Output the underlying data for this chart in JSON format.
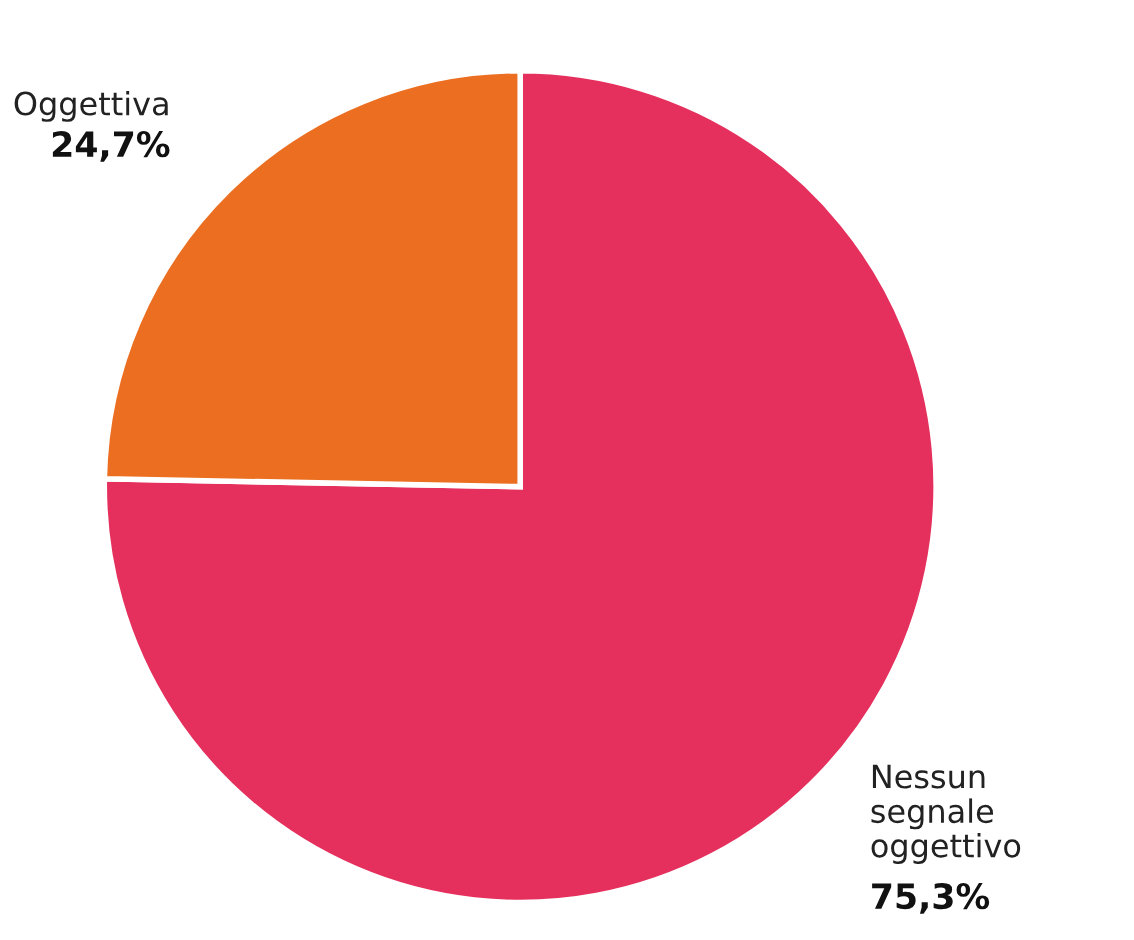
{
  "chart_data": {
    "type": "pie",
    "categories": [
      "Nessun segnale oggettivo",
      "Oggettiva"
    ],
    "values": [
      75.3,
      24.7
    ],
    "colors": [
      "#e5305e",
      "#ec6f21"
    ],
    "value_labels": [
      "75,3%",
      "24,7%"
    ]
  }
}
